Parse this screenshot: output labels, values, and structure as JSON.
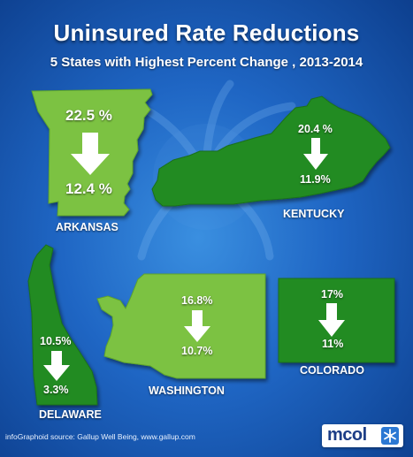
{
  "header": {
    "title": "Uninsured Rate Reductions",
    "subtitle": "5 States with Highest Percent Change , 2013-2014"
  },
  "states": {
    "arkansas": {
      "name": "ARKANSAS",
      "from": "22.5 %",
      "to": "12.4 %"
    },
    "kentucky": {
      "name": "KENTUCKY",
      "from": "20.4 %",
      "to": "11.9%"
    },
    "delaware": {
      "name": "DELAWARE",
      "from": "10.5%",
      "to": "3.3%"
    },
    "washington": {
      "name": "WASHINGTON",
      "from": "16.8%",
      "to": "10.7%"
    },
    "colorado": {
      "name": "COLORADO",
      "from": "17%",
      "to": "11%"
    }
  },
  "footer": {
    "source": "infoGraphoid source:  Gallup Well Being,  www.gallup.com",
    "logo_text": "mcol"
  },
  "colors": {
    "background": "#1f66c4",
    "state_light": "#7cc242",
    "state_dark": "#228b22",
    "text": "#ffffff"
  }
}
